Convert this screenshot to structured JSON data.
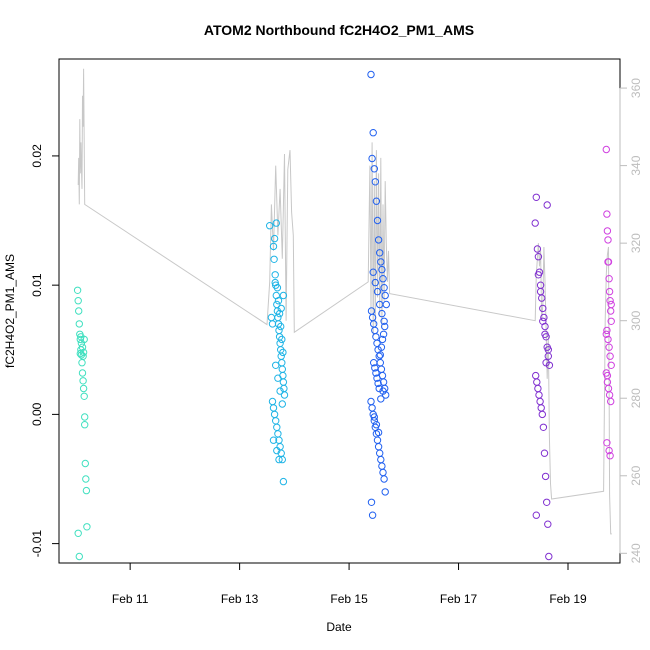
{
  "chart_data": {
    "type": "scatter",
    "title": "ATOM2 Northbound fC2H4O2_PM1_AMS",
    "xlabel": "Date",
    "ylabel": "fC2H4O2_PM1_AMS",
    "x_ticks": [
      {
        "value": 11,
        "label": "Feb 11"
      },
      {
        "value": 13,
        "label": "Feb 13"
      },
      {
        "value": 15,
        "label": "Feb 15"
      },
      {
        "value": 17,
        "label": "Feb 17"
      },
      {
        "value": 19,
        "label": "Feb 19"
      }
    ],
    "xlim": [
      9.7,
      19.95
    ],
    "ylim": [
      -0.0115,
      0.0275
    ],
    "y_ticks": [
      -0.01,
      0.0,
      0.01,
      0.02
    ],
    "y_tick_labels": [
      "-0.01",
      "0.00",
      "0.01",
      "0.02"
    ],
    "y2_ticks": [
      240,
      260,
      280,
      300,
      320,
      340,
      360
    ],
    "y2_lim": [
      237.5,
      367.5
    ],
    "grid": false,
    "series": [
      {
        "color": "#40e0c0",
        "x": [
          10.04,
          10.05,
          10.06,
          10.07,
          10.08,
          10.09,
          10.1,
          10.11,
          10.12,
          10.13,
          10.14,
          10.15,
          10.16,
          10.17,
          10.18,
          10.19,
          10.2,
          10.21,
          10.05,
          10.07,
          10.09,
          10.1,
          10.11,
          10.13,
          10.14,
          10.15,
          10.16,
          10.17
        ],
        "y": [
          0.0096,
          0.0088,
          0.008,
          0.007,
          0.0062,
          0.0058,
          0.005,
          0.0046,
          0.004,
          0.0032,
          0.0026,
          0.002,
          0.0014,
          -0.0008,
          -0.0038,
          -0.005,
          -0.0059,
          -0.0087,
          -0.0092,
          -0.011,
          0.0047,
          0.006,
          0.0055,
          0.0052,
          0.0045,
          0.0048,
          0.0058,
          -0.0002
        ]
      },
      {
        "color": "#1eb4e6",
        "x": [
          13.55,
          13.58,
          13.6,
          13.62,
          13.63,
          13.65,
          13.66,
          13.67,
          13.68,
          13.69,
          13.7,
          13.71,
          13.72,
          13.73,
          13.74,
          13.75,
          13.76,
          13.77,
          13.78,
          13.79,
          13.8,
          13.81,
          13.82,
          13.6,
          13.62,
          13.64,
          13.66,
          13.68,
          13.7,
          13.72,
          13.74,
          13.76,
          13.78,
          13.8,
          13.64,
          13.67,
          13.69,
          13.71,
          13.73,
          13.75,
          13.77,
          13.79,
          13.66,
          13.7,
          13.74,
          13.78,
          13.62,
          13.68,
          13.72,
          13.76,
          13.8,
          13.65
        ],
        "y": [
          0.0146,
          0.0075,
          0.007,
          0.013,
          0.012,
          0.0108,
          0.01,
          0.0092,
          0.0085,
          0.008,
          0.0075,
          0.007,
          0.0065,
          0.006,
          0.0055,
          0.005,
          0.0045,
          0.004,
          0.0035,
          0.003,
          0.0025,
          0.002,
          0.0015,
          0.001,
          0.0005,
          0.0,
          -0.0005,
          -0.001,
          -0.0015,
          -0.002,
          -0.0025,
          -0.003,
          -0.0035,
          -0.0052,
          0.0136,
          0.0148,
          0.0098,
          0.0088,
          0.0078,
          0.0068,
          0.0058,
          0.0048,
          0.0038,
          0.0028,
          0.0018,
          0.0008,
          -0.002,
          -0.0028,
          -0.0035,
          0.0082,
          0.0092,
          0.0102
        ]
      },
      {
        "color": "#2060f0",
        "x": [
          15.4,
          15.42,
          15.44,
          15.46,
          15.48,
          15.5,
          15.52,
          15.54,
          15.56,
          15.58,
          15.6,
          15.62,
          15.64,
          15.66,
          15.68,
          15.41,
          15.43,
          15.45,
          15.47,
          15.49,
          15.51,
          15.53,
          15.55,
          15.57,
          15.59,
          15.61,
          15.63,
          15.65,
          15.67,
          15.4,
          15.42,
          15.44,
          15.46,
          15.48,
          15.5,
          15.52,
          15.54,
          15.56,
          15.58,
          15.6,
          15.62,
          15.64,
          15.66,
          15.41,
          15.43,
          15.45,
          15.47,
          15.49,
          15.51,
          15.53,
          15.55,
          15.57,
          15.59,
          15.61,
          15.63,
          15.65,
          15.44,
          15.48,
          15.52,
          15.56,
          15.6,
          15.64,
          15.46,
          15.5,
          15.54,
          15.58,
          15.62
        ],
        "y": [
          0.0263,
          0.0198,
          0.0218,
          0.019,
          0.018,
          0.0165,
          0.015,
          0.0135,
          0.0125,
          0.0118,
          0.0112,
          0.0105,
          0.0098,
          0.0092,
          0.0085,
          0.008,
          0.0075,
          0.007,
          0.0065,
          0.006,
          0.0055,
          0.005,
          0.0045,
          0.004,
          0.0035,
          0.003,
          0.0025,
          0.002,
          0.0015,
          0.001,
          0.0005,
          0.0,
          -0.0005,
          -0.001,
          -0.0015,
          -0.002,
          -0.0025,
          -0.003,
          -0.0035,
          -0.004,
          -0.0045,
          -0.005,
          -0.006,
          -0.0068,
          -0.0078,
          0.004,
          0.0036,
          0.0032,
          0.0028,
          0.0024,
          0.002,
          0.0046,
          0.0052,
          0.0058,
          0.0062,
          0.0068,
          0.011,
          0.0102,
          0.0095,
          0.0085,
          0.0078,
          0.0072,
          -0.0002,
          -0.0008,
          -0.0014,
          0.0012,
          0.0018
        ]
      },
      {
        "color": "#8030d0",
        "x": [
          18.4,
          18.42,
          18.44,
          18.46,
          18.48,
          18.5,
          18.52,
          18.54,
          18.56,
          18.58,
          18.6,
          18.62,
          18.64,
          18.66,
          18.41,
          18.43,
          18.45,
          18.47,
          18.49,
          18.51,
          18.53,
          18.55,
          18.57,
          18.59,
          18.61,
          18.63,
          18.65,
          18.42,
          18.46,
          18.5,
          18.54,
          18.58,
          18.62,
          18.64,
          18.6
        ],
        "y": [
          0.0148,
          0.0168,
          0.0128,
          0.0122,
          0.011,
          0.01,
          0.009,
          0.0082,
          0.0075,
          0.0068,
          0.006,
          0.0052,
          0.0045,
          0.0038,
          0.003,
          0.0025,
          0.002,
          0.0015,
          0.001,
          0.0005,
          0.0,
          -0.001,
          -0.003,
          -0.0048,
          -0.0068,
          -0.0085,
          -0.011,
          -0.0078,
          0.0108,
          0.0095,
          0.0072,
          0.0062,
          0.0162,
          0.005,
          0.004
        ]
      },
      {
        "color": "#d040e0",
        "x": [
          19.7,
          19.71,
          19.72,
          19.73,
          19.74,
          19.75,
          19.76,
          19.77,
          19.78,
          19.79,
          19.71,
          19.73,
          19.75,
          19.77,
          19.79,
          19.7,
          19.72,
          19.74,
          19.76,
          19.78,
          19.71,
          19.75,
          19.77,
          19.73,
          19.79,
          19.7,
          19.72
        ],
        "y": [
          0.0205,
          0.0155,
          0.0142,
          0.0135,
          0.0118,
          0.0105,
          0.0095,
          0.0088,
          0.008,
          0.0072,
          0.0065,
          0.0058,
          0.0052,
          0.0045,
          0.0038,
          0.0032,
          0.0025,
          0.002,
          0.0015,
          0.001,
          -0.0022,
          -0.0028,
          -0.0032,
          0.0118,
          0.0085,
          0.0062,
          0.003
        ]
      }
    ],
    "line_series": {
      "color": "#c8c8c8",
      "axis": "right",
      "x": [
        10.05,
        10.06,
        10.07,
        10.08,
        10.09,
        10.1,
        10.11,
        10.12,
        10.13,
        10.14,
        10.15,
        10.17,
        13.5,
        13.55,
        13.58,
        13.62,
        13.66,
        13.7,
        13.74,
        13.78,
        13.82,
        13.85,
        13.88,
        13.92,
        13.95,
        13.98,
        14.0,
        15.35,
        15.38,
        15.4,
        15.42,
        15.44,
        15.46,
        15.48,
        15.5,
        15.52,
        15.54,
        15.56,
        15.58,
        15.6,
        15.62,
        15.64,
        15.66,
        15.68,
        15.7,
        15.72,
        15.74,
        18.4,
        18.42,
        18.44,
        18.46,
        18.48,
        18.5,
        18.52,
        18.54,
        18.56,
        18.58,
        18.6,
        18.62,
        18.64,
        18.66,
        18.68,
        18.7,
        19.65,
        19.68,
        19.7,
        19.72,
        19.74,
        19.76,
        19.78,
        19.8
      ],
      "y": [
        335,
        342,
        330,
        352,
        338,
        346,
        340,
        334,
        358,
        350,
        365,
        330,
        299,
        310,
        330,
        318,
        340,
        322,
        334,
        316,
        343,
        300,
        339,
        344,
        328,
        322,
        297,
        310,
        340,
        302,
        346,
        296,
        336,
        299,
        344,
        306,
        338,
        301,
        342,
        298,
        330,
        305,
        336,
        320,
        310,
        318,
        307,
        300,
        312,
        316,
        320,
        314,
        318,
        300,
        304,
        319,
        310,
        298,
        285,
        296,
        270,
        258,
        254,
        256,
        300,
        312,
        317,
        319,
        255,
        245,
        245
      ]
    }
  }
}
